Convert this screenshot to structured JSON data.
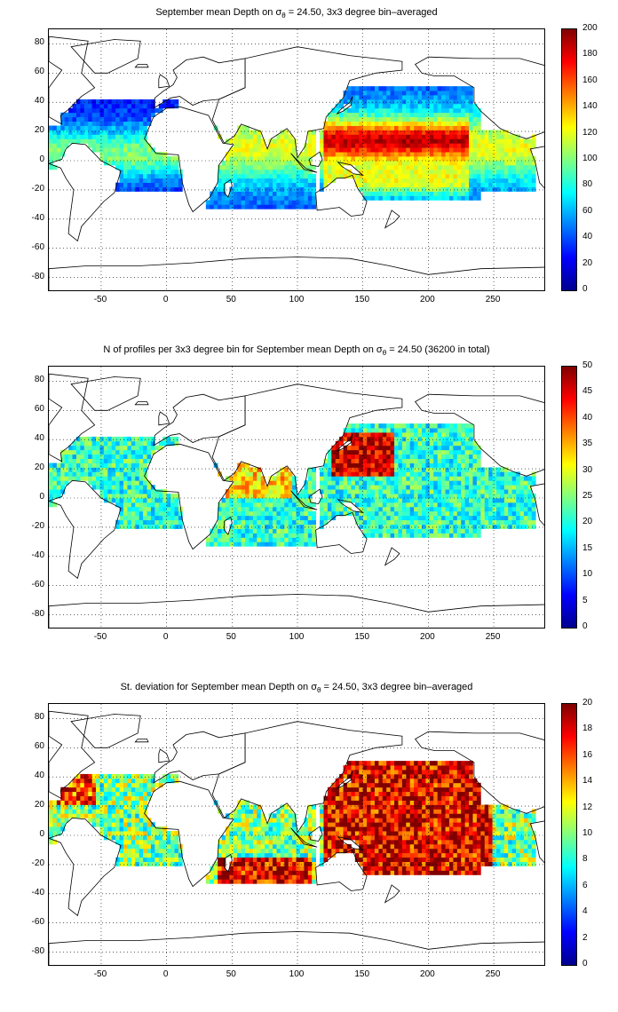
{
  "colorscale": "jet",
  "colors": {
    "jet": [
      "#00008f",
      "#0000ff",
      "#0080ff",
      "#00ffff",
      "#80ff80",
      "#ffff00",
      "#ff8000",
      "#ff0000",
      "#800000"
    ]
  },
  "chart_data": [
    {
      "type": "heatmap",
      "title_prefix": "September mean Depth on",
      "title_sigma": "σ",
      "title_sub": "θ",
      "title_suffix": " = 24.50, 3x3 degree bin–averaged",
      "xlim": [
        -90,
        290
      ],
      "ylim": [
        -90,
        90
      ],
      "xticks": [
        "-50",
        "0",
        "50",
        "100",
        "150",
        "200",
        "250"
      ],
      "yticks": [
        "80",
        "60",
        "40",
        "20",
        "0",
        "-20",
        "-40",
        "-60",
        "-80"
      ],
      "colorbar_ticks": [
        "200",
        "180",
        "160",
        "140",
        "120",
        "100",
        "80",
        "60",
        "40",
        "20",
        "0"
      ],
      "clim": [
        0,
        200
      ],
      "grid": true
    },
    {
      "type": "heatmap",
      "title_prefix": "N of profiles per 3x3 degree bin for September mean Depth on",
      "title_sigma": "σ",
      "title_sub": "θ",
      "title_suffix": " = 24.50 (36200 in total)",
      "xlim": [
        -90,
        290
      ],
      "ylim": [
        -90,
        90
      ],
      "xticks": [
        "-50",
        "0",
        "50",
        "100",
        "150",
        "200",
        "250"
      ],
      "yticks": [
        "80",
        "60",
        "40",
        "20",
        "0",
        "-20",
        "-40",
        "-60",
        "-80"
      ],
      "colorbar_ticks": [
        "50",
        "45",
        "40",
        "35",
        "30",
        "25",
        "20",
        "15",
        "10",
        "5",
        "0"
      ],
      "clim": [
        0,
        50
      ],
      "grid": true
    },
    {
      "type": "heatmap",
      "title_prefix": "St. deviation for September mean Depth on",
      "title_sigma": "σ",
      "title_sub": "θ",
      "title_suffix": " = 24.50, 3x3 degree bin–averaged",
      "xlim": [
        -90,
        290
      ],
      "ylim": [
        -90,
        90
      ],
      "xticks": [
        "-50",
        "0",
        "50",
        "100",
        "150",
        "200",
        "250"
      ],
      "yticks": [
        "80",
        "60",
        "40",
        "20",
        "0",
        "-20",
        "-40",
        "-60",
        "-80"
      ],
      "colorbar_ticks": [
        "20",
        "18",
        "16",
        "14",
        "12",
        "10",
        "8",
        "6",
        "4",
        "2",
        "0"
      ],
      "clim": [
        0,
        20
      ],
      "grid": true
    }
  ]
}
